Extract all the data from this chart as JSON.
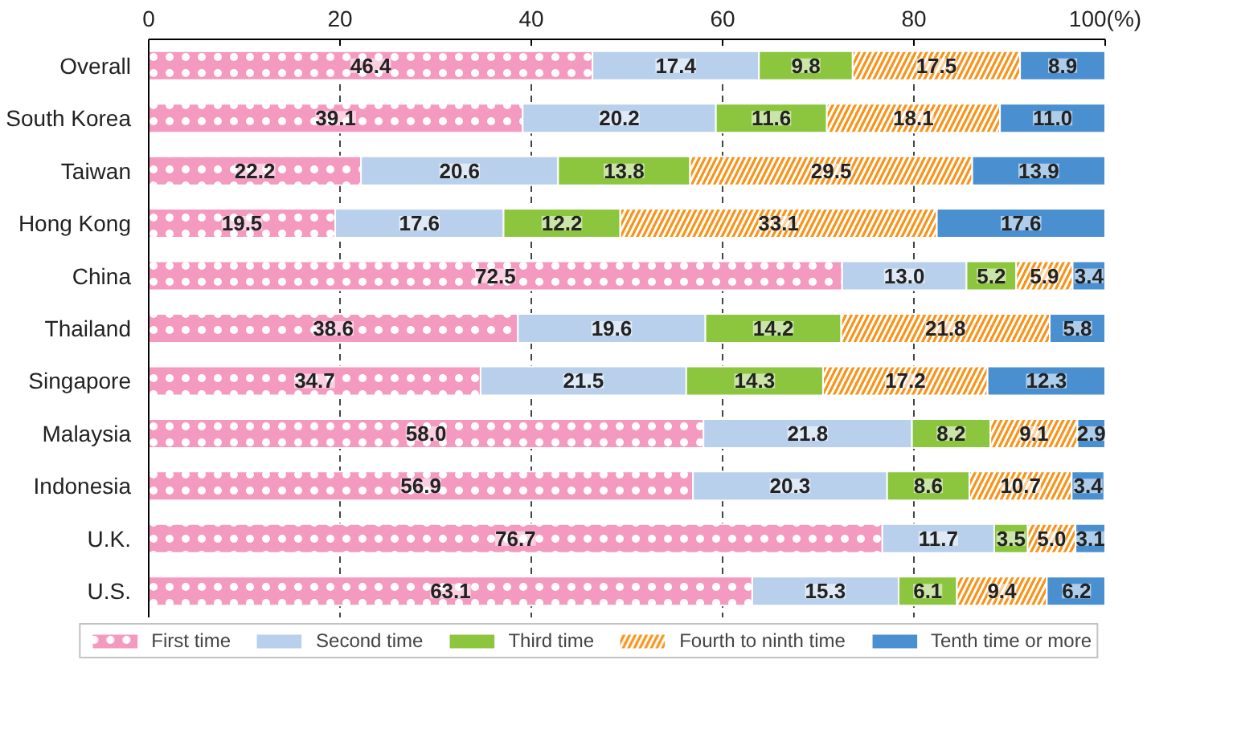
{
  "chart_data": {
    "type": "bar",
    "orientation": "horizontal",
    "stacked": true,
    "categories": [
      "Overall",
      "South Korea",
      "Taiwan",
      "Hong Kong",
      "China",
      "Thailand",
      "Singapore",
      "Malaysia",
      "Indonesia",
      "U.K.",
      "U.S."
    ],
    "series": [
      {
        "name": "First time",
        "color": "#f49ac1",
        "values": [
          46.4,
          39.1,
          22.2,
          19.5,
          72.5,
          38.6,
          34.7,
          58.0,
          56.9,
          76.7,
          63.1
        ],
        "value_labels": [
          "46.4",
          "39.1",
          "22.2",
          "19.5",
          "72.5",
          "38.6",
          "34.7",
          "58.0",
          "56.9",
          "76.7",
          "63.1"
        ]
      },
      {
        "name": "Second time",
        "color": "#b8d0eb",
        "values": [
          17.4,
          20.2,
          20.6,
          17.6,
          13.0,
          19.6,
          21.5,
          21.8,
          20.3,
          11.7,
          15.3
        ],
        "value_labels": [
          "17.4",
          "20.2",
          "20.6",
          "17.6",
          "13.0",
          "19.6",
          "21.5",
          "21.8",
          "20.3",
          "11.7",
          "15.3"
        ]
      },
      {
        "name": "Third time",
        "color": "#8cc63f",
        "values": [
          9.8,
          11.6,
          13.8,
          12.2,
          5.2,
          14.2,
          14.3,
          8.2,
          8.6,
          3.5,
          6.1
        ],
        "value_labels": [
          "9.8",
          "11.6",
          "13.8",
          "12.2",
          "5.2",
          "14.2",
          "14.3",
          "8.2",
          "8.6",
          "3.5",
          "6.1"
        ]
      },
      {
        "name": "Fourth to ninth time",
        "color": "#f7941d",
        "values": [
          17.5,
          18.1,
          29.5,
          33.1,
          5.9,
          21.8,
          17.2,
          9.1,
          10.7,
          5.0,
          9.4
        ],
        "value_labels": [
          "17.5",
          "18.1",
          "29.5",
          "33.1",
          "5.9",
          "21.8",
          "17.2",
          "9.1",
          "10.7",
          "5.0",
          "9.4"
        ]
      },
      {
        "name": "Tenth time or more",
        "color": "#4a90d0",
        "values": [
          8.9,
          11.0,
          13.9,
          17.6,
          3.4,
          5.8,
          12.3,
          2.9,
          3.4,
          3.1,
          6.2
        ],
        "value_labels": [
          "8.9",
          "11.0",
          "13.9",
          "17.6",
          "3.4",
          "5.8",
          "12.3",
          "2.9",
          "3.4",
          "3.1",
          "6.2"
        ]
      }
    ],
    "xlim": [
      0,
      100
    ],
    "xticks": [
      0,
      20,
      40,
      60,
      80,
      {
        "value": 100,
        "label": "100(%)"
      }
    ],
    "grid": "x",
    "legend": "bottom"
  }
}
